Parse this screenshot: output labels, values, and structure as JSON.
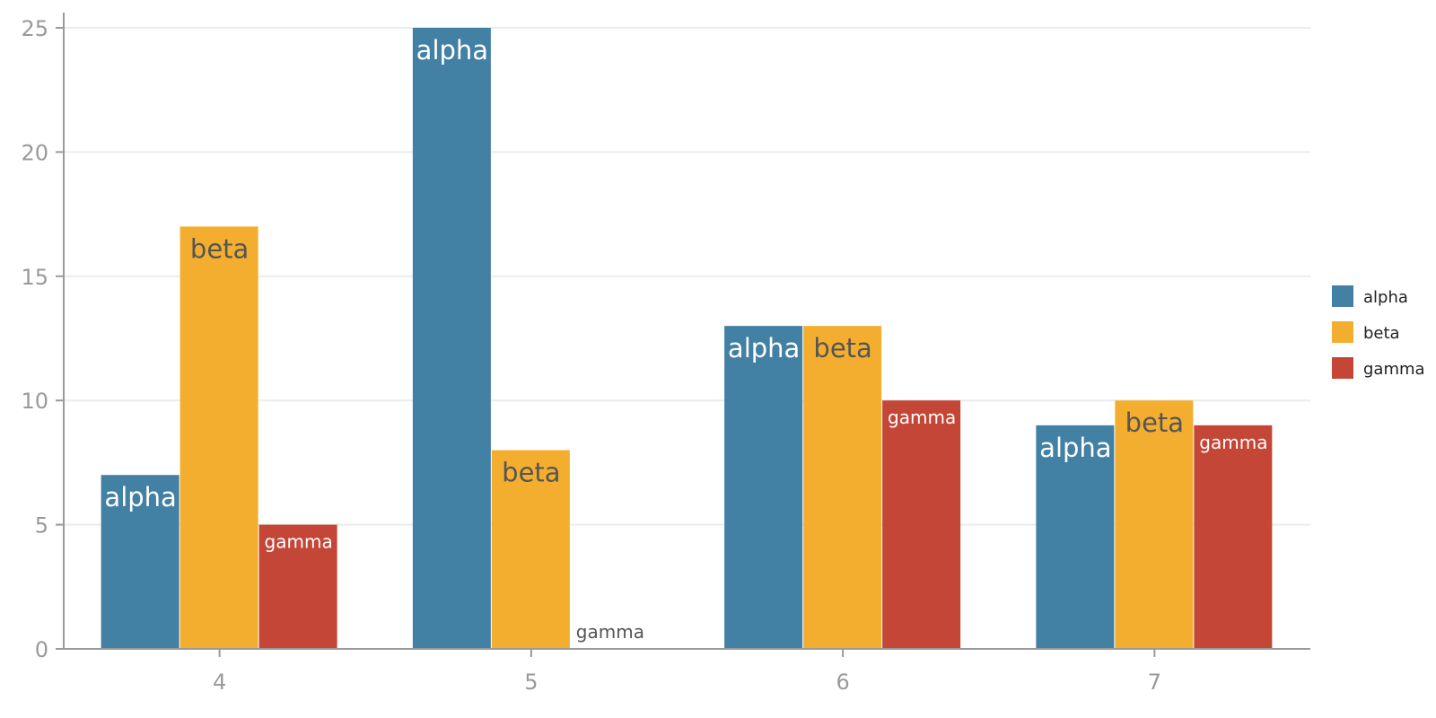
{
  "chart_data": {
    "type": "bar",
    "categories": [
      "4",
      "5",
      "6",
      "7"
    ],
    "series": [
      {
        "name": "alpha",
        "values": [
          7,
          25,
          13,
          9
        ],
        "color": "#4280a4"
      },
      {
        "name": "beta",
        "values": [
          17,
          8,
          13,
          10
        ],
        "color": "#f4ae2f"
      },
      {
        "name": "gamma",
        "values": [
          5,
          0,
          10,
          9
        ],
        "color": "#c44637"
      }
    ],
    "ylim": [
      0,
      25
    ],
    "yticks": [
      0,
      5,
      10,
      15,
      20,
      25
    ],
    "grid": true,
    "legend": "right",
    "title": "",
    "xlabel": "",
    "ylabel": ""
  }
}
